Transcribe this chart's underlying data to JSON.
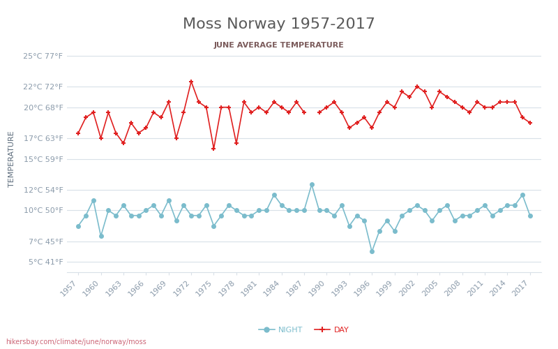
{
  "title": "Moss Norway 1957-2017",
  "subtitle": "JUNE AVERAGE TEMPERATURE",
  "ylabel": "TEMPERATURE",
  "watermark": "hikersbay.com/climate/june/norway/moss",
  "years": [
    1957,
    1958,
    1959,
    1960,
    1961,
    1962,
    1963,
    1964,
    1965,
    1966,
    1967,
    1968,
    1969,
    1970,
    1971,
    1972,
    1973,
    1974,
    1975,
    1976,
    1977,
    1978,
    1979,
    1980,
    1981,
    1982,
    1983,
    1984,
    1985,
    1986,
    1987,
    1988,
    1989,
    1990,
    1991,
    1992,
    1993,
    1994,
    1995,
    1996,
    1997,
    1998,
    1999,
    2000,
    2001,
    2002,
    2003,
    2004,
    2005,
    2006,
    2007,
    2008,
    2009,
    2010,
    2011,
    2012,
    2013,
    2014,
    2015,
    2016,
    2017
  ],
  "day_temps": [
    17.5,
    19.0,
    19.5,
    17.0,
    19.5,
    17.5,
    16.5,
    18.5,
    17.5,
    18.0,
    19.5,
    19.0,
    20.5,
    17.0,
    19.5,
    22.5,
    20.5,
    20.0,
    16.0,
    20.0,
    20.0,
    16.5,
    20.5,
    19.5,
    20.0,
    19.5,
    20.5,
    20.0,
    19.5,
    20.5,
    19.5,
    null,
    19.5,
    20.0,
    20.5,
    19.5,
    18.0,
    18.5,
    19.0,
    18.0,
    19.5,
    20.5,
    20.0,
    21.5,
    21.0,
    22.0,
    21.5,
    20.0,
    21.5,
    21.0,
    20.5,
    20.0,
    19.5,
    20.5,
    20.0,
    20.0,
    20.5,
    20.5,
    20.5,
    19.0,
    18.5
  ],
  "night_temps": [
    8.5,
    9.5,
    11.0,
    7.5,
    10.0,
    9.5,
    10.5,
    9.5,
    9.5,
    10.0,
    10.5,
    9.5,
    11.0,
    9.0,
    10.5,
    9.5,
    9.5,
    10.5,
    8.5,
    9.5,
    10.5,
    10.0,
    9.5,
    9.5,
    10.0,
    10.0,
    11.5,
    10.5,
    10.0,
    10.0,
    10.0,
    12.5,
    10.0,
    10.0,
    9.5,
    10.5,
    8.5,
    9.5,
    9.0,
    6.0,
    8.0,
    9.0,
    8.0,
    9.5,
    10.0,
    10.5,
    10.0,
    9.0,
    10.0,
    10.5,
    9.0,
    9.5,
    9.5,
    10.0,
    10.5,
    9.5,
    10.0,
    10.5,
    10.5,
    11.5,
    9.5
  ],
  "day_color": "#e02020",
  "night_color": "#7bbccc",
  "title_color": "#5a5a5a",
  "subtitle_color": "#7a5a5a",
  "ylabel_color": "#5a6a7a",
  "tick_color": "#8a9aaa",
  "grid_color": "#d8e0e8",
  "bg_color": "#ffffff",
  "yticks_c": [
    5,
    7,
    10,
    12,
    15,
    17,
    20,
    22,
    25
  ],
  "yticks_f": [
    41,
    45,
    50,
    54,
    59,
    63,
    68,
    72,
    77
  ],
  "ymin": 4,
  "ymax": 26,
  "xtick_years": [
    1957,
    1960,
    1963,
    1966,
    1969,
    1972,
    1975,
    1978,
    1981,
    1984,
    1987,
    1990,
    1993,
    1996,
    1999,
    2002,
    2005,
    2008,
    2011,
    2014,
    2017
  ]
}
